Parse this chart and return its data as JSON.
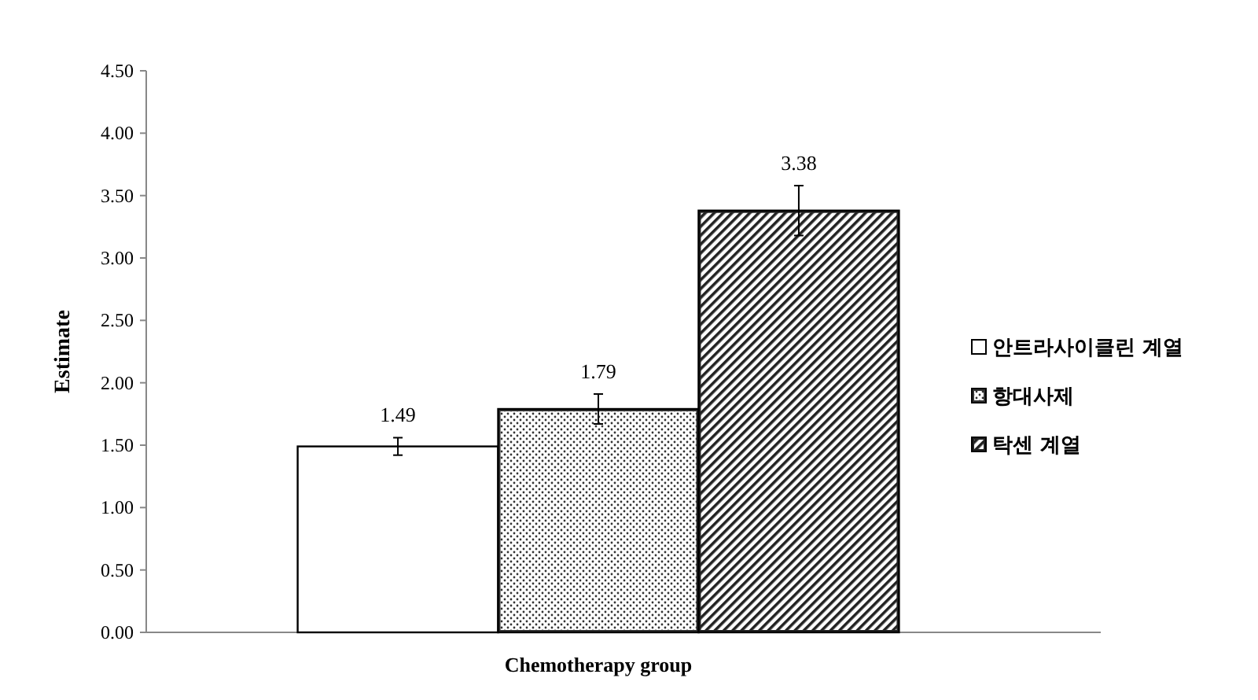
{
  "chart_data": {
    "type": "bar",
    "xlabel": "Chemotherapy group",
    "ylabel": "Estimate",
    "categories": [
      null
    ],
    "series": [
      {
        "name": "안트라사이클린 계열",
        "color": "#ffffff",
        "values": [
          1.49
        ],
        "errors": [
          0.07
        ]
      },
      {
        "name": "항대사제",
        "color": "#333333",
        "values": [
          1.79
        ],
        "errors": [
          0.12
        ]
      },
      {
        "name": "탁센 계열",
        "color": "#222222",
        "values": [
          3.38
        ],
        "errors": [
          0.2
        ]
      }
    ],
    "ylim": [
      0,
      4.5
    ],
    "yticks": [
      {
        "value": 0,
        "label": "0.00"
      },
      {
        "value": 0.5,
        "label": "0.50"
      },
      {
        "value": 1,
        "label": "1.00"
      },
      {
        "value": 1.5,
        "label": "1.50"
      },
      {
        "value": 2,
        "label": "2.00"
      },
      {
        "value": 2.5,
        "label": "2.50"
      },
      {
        "value": 3,
        "label": "3.00"
      },
      {
        "value": 3.5,
        "label": "3.50"
      },
      {
        "value": 4,
        "label": "4.00"
      },
      {
        "value": 4.5,
        "label": "4.50"
      }
    ],
    "data_labels": true,
    "grid": false,
    "legend": "right"
  }
}
